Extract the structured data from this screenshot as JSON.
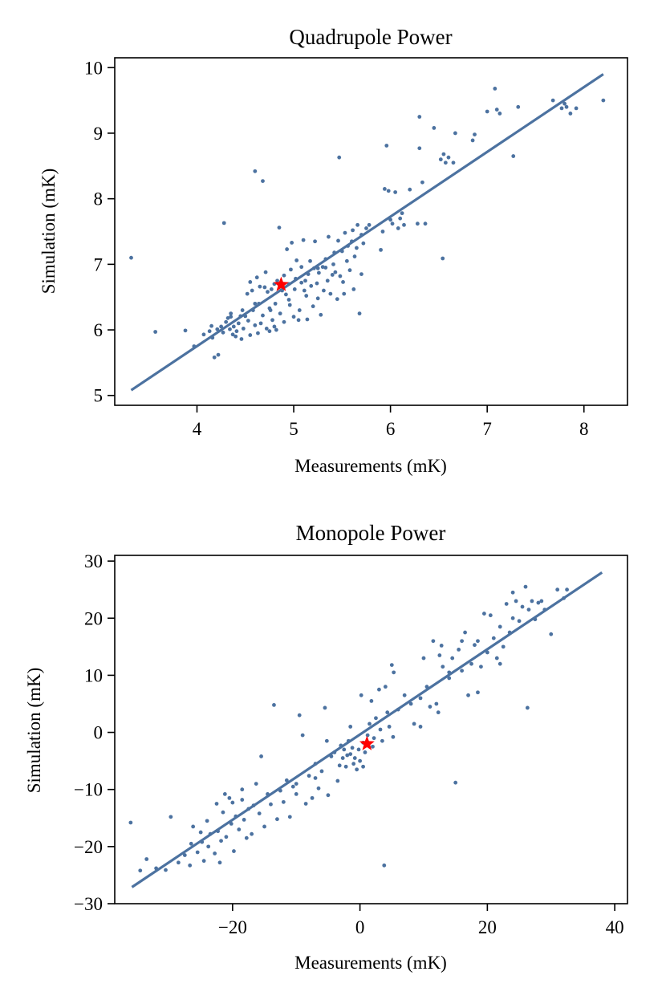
{
  "chart_data": [
    {
      "type": "scatter",
      "title": "Quadrupole Power",
      "xlabel": "Measurements (mK)",
      "ylabel": "Simulation (mK)",
      "xlim": [
        3.15,
        8.45
      ],
      "ylim": [
        4.85,
        10.15
      ],
      "xticks": [
        4,
        5,
        6,
        7,
        8
      ],
      "yticks": [
        5,
        6,
        7,
        8,
        9,
        10
      ],
      "point_color": "#4c72a0",
      "line_color": "#4c72a0",
      "star_color": "#ff0000",
      "fit_line": {
        "x": [
          3.32,
          8.2
        ],
        "y": [
          5.08,
          9.9
        ]
      },
      "highlight": {
        "x": 4.87,
        "y": 6.69
      },
      "points": [
        [
          3.32,
          7.1
        ],
        [
          3.57,
          5.97
        ],
        [
          3.88,
          5.99
        ],
        [
          3.97,
          5.75
        ],
        [
          4.07,
          5.93
        ],
        [
          4.13,
          5.98
        ],
        [
          4.15,
          6.06
        ],
        [
          4.16,
          5.88
        ],
        [
          4.18,
          5.58
        ],
        [
          4.21,
          6.01
        ],
        [
          4.22,
          5.62
        ],
        [
          4.25,
          6.05
        ],
        [
          4.27,
          5.96
        ],
        [
          4.28,
          7.63
        ],
        [
          4.3,
          6.12
        ],
        [
          4.32,
          6.18
        ],
        [
          4.34,
          6.01
        ],
        [
          4.35,
          6.25
        ],
        [
          4.37,
          5.93
        ],
        [
          4.38,
          6.05
        ],
        [
          4.4,
          5.9
        ],
        [
          4.41,
          5.98
        ],
        [
          4.43,
          6.1
        ],
        [
          4.45,
          6.21
        ],
        [
          4.46,
          5.86
        ],
        [
          4.47,
          6.3
        ],
        [
          4.48,
          6.02
        ],
        [
          4.5,
          6.21
        ],
        [
          4.52,
          6.55
        ],
        [
          4.53,
          6.14
        ],
        [
          4.55,
          6.73
        ],
        [
          4.55,
          5.92
        ],
        [
          4.57,
          6.6
        ],
        [
          4.58,
          6.3
        ],
        [
          4.6,
          8.42
        ],
        [
          4.6,
          6.07
        ],
        [
          4.62,
          6.8
        ],
        [
          4.63,
          5.95
        ],
        [
          4.64,
          6.4
        ],
        [
          4.65,
          6.66
        ],
        [
          4.66,
          6.1
        ],
        [
          4.68,
          8.27
        ],
        [
          4.68,
          6.22
        ],
        [
          4.7,
          6.65
        ],
        [
          4.71,
          6.88
        ],
        [
          4.72,
          6.02
        ],
        [
          4.73,
          6.58
        ],
        [
          4.75,
          5.98
        ],
        [
          4.76,
          6.3
        ],
        [
          4.77,
          6.62
        ],
        [
          4.78,
          6.15
        ],
        [
          4.8,
          6.7
        ],
        [
          4.8,
          6.05
        ],
        [
          4.81,
          6.4
        ],
        [
          4.82,
          6.0
        ],
        [
          4.83,
          6.75
        ],
        [
          4.85,
          7.56
        ],
        [
          4.86,
          6.25
        ],
        [
          4.88,
          6.6
        ],
        [
          4.9,
          6.83
        ],
        [
          4.9,
          6.12
        ],
        [
          4.92,
          6.54
        ],
        [
          4.93,
          7.23
        ],
        [
          4.95,
          6.7
        ],
        [
          4.96,
          6.38
        ],
        [
          4.97,
          6.92
        ],
        [
          4.98,
          7.33
        ],
        [
          5.0,
          6.2
        ],
        [
          5.01,
          6.62
        ],
        [
          5.02,
          6.78
        ],
        [
          5.03,
          7.06
        ],
        [
          5.05,
          6.15
        ],
        [
          5.06,
          6.3
        ],
        [
          5.08,
          6.72
        ],
        [
          5.08,
          6.96
        ],
        [
          5.1,
          7.37
        ],
        [
          5.11,
          6.6
        ],
        [
          5.13,
          6.52
        ],
        [
          5.14,
          6.16
        ],
        [
          5.15,
          6.85
        ],
        [
          5.17,
          7.05
        ],
        [
          5.18,
          6.67
        ],
        [
          5.2,
          6.36
        ],
        [
          5.21,
          6.94
        ],
        [
          5.22,
          7.35
        ],
        [
          5.24,
          6.71
        ],
        [
          5.25,
          6.48
        ],
        [
          5.26,
          6.87
        ],
        [
          5.28,
          6.23
        ],
        [
          5.3,
          6.96
        ],
        [
          5.31,
          6.6
        ],
        [
          5.33,
          7.08
        ],
        [
          5.35,
          6.75
        ],
        [
          5.36,
          7.42
        ],
        [
          5.38,
          6.55
        ],
        [
          5.4,
          6.84
        ],
        [
          5.41,
          7.0
        ],
        [
          5.43,
          6.88
        ],
        [
          5.45,
          6.47
        ],
        [
          5.46,
          7.36
        ],
        [
          5.47,
          8.63
        ],
        [
          5.48,
          6.82
        ],
        [
          5.5,
          7.2
        ],
        [
          5.51,
          6.73
        ],
        [
          5.53,
          7.48
        ],
        [
          5.55,
          7.05
        ],
        [
          5.56,
          7.28
        ],
        [
          5.58,
          6.91
        ],
        [
          5.6,
          7.35
        ],
        [
          5.61,
          7.52
        ],
        [
          5.63,
          7.12
        ],
        [
          5.65,
          7.25
        ],
        [
          5.66,
          7.6
        ],
        [
          5.68,
          6.25
        ],
        [
          5.7,
          7.45
        ],
        [
          5.72,
          7.32
        ],
        [
          5.75,
          7.55
        ],
        [
          5.78,
          7.6
        ],
        [
          5.9,
          7.22
        ],
        [
          5.92,
          7.5
        ],
        [
          5.94,
          8.15
        ],
        [
          5.96,
          8.81
        ],
        [
          5.98,
          8.12
        ],
        [
          6.0,
          7.68
        ],
        [
          6.02,
          7.62
        ],
        [
          6.05,
          8.1
        ],
        [
          6.08,
          7.55
        ],
        [
          6.1,
          7.7
        ],
        [
          6.12,
          7.78
        ],
        [
          6.14,
          7.6
        ],
        [
          6.2,
          8.14
        ],
        [
          6.28,
          7.62
        ],
        [
          6.3,
          8.77
        ],
        [
          6.3,
          9.25
        ],
        [
          6.33,
          8.25
        ],
        [
          6.36,
          7.62
        ],
        [
          6.45,
          9.08
        ],
        [
          6.52,
          8.6
        ],
        [
          6.54,
          7.09
        ],
        [
          6.55,
          8.68
        ],
        [
          6.57,
          8.55
        ],
        [
          6.6,
          8.63
        ],
        [
          6.65,
          8.55
        ],
        [
          6.67,
          9.0
        ],
        [
          6.85,
          8.89
        ],
        [
          6.87,
          8.98
        ],
        [
          7.0,
          9.33
        ],
        [
          7.08,
          9.68
        ],
        [
          7.1,
          9.36
        ],
        [
          7.13,
          9.3
        ],
        [
          7.27,
          8.65
        ],
        [
          7.32,
          9.4
        ],
        [
          7.68,
          9.5
        ],
        [
          7.77,
          9.38
        ],
        [
          7.8,
          9.45
        ],
        [
          7.82,
          9.4
        ],
        [
          7.86,
          9.3
        ],
        [
          7.92,
          9.38
        ],
        [
          8.2,
          9.5
        ],
        [
          5.42,
          7.18
        ],
        [
          5.52,
          6.55
        ],
        [
          5.7,
          6.85
        ],
        [
          4.35,
          6.2
        ],
        [
          4.95,
          6.46
        ],
        [
          5.25,
          6.94
        ],
        [
          4.6,
          6.4
        ],
        [
          5.12,
          6.75
        ],
        [
          5.62,
          6.62
        ],
        [
          4.75,
          6.33
        ],
        [
          5.33,
          6.95
        ]
      ]
    },
    {
      "type": "scatter",
      "title": "Monopole Power",
      "xlabel": "Measurements (mK)",
      "ylabel": "Simulation (mK)",
      "xlim": [
        -38.5,
        42
      ],
      "ylim": [
        -30,
        31
      ],
      "xticks": [
        -20,
        0,
        20,
        40
      ],
      "yticks": [
        -30,
        -20,
        -10,
        0,
        10,
        20,
        30
      ],
      "point_color": "#4c72a0",
      "line_color": "#4c72a0",
      "star_color": "#ff0000",
      "fit_line": {
        "x": [
          -35.8,
          38
        ],
        "y": [
          -27.1,
          28.0
        ]
      },
      "highlight": {
        "x": 1.1,
        "y": -2.0
      },
      "points": [
        [
          -36.0,
          -15.8
        ],
        [
          -34.5,
          -24.2
        ],
        [
          -33.5,
          -22.2
        ],
        [
          -32.0,
          -23.8
        ],
        [
          -30.5,
          -24.1
        ],
        [
          -29.7,
          -14.8
        ],
        [
          -28.5,
          -22.8
        ],
        [
          -27.5,
          -21.5
        ],
        [
          -26.7,
          -23.3
        ],
        [
          -26.5,
          -19.5
        ],
        [
          -26.2,
          -16.5
        ],
        [
          -25.5,
          -21.0
        ],
        [
          -24.8,
          -19.2
        ],
        [
          -24.5,
          -22.5
        ],
        [
          -24.0,
          -15.5
        ],
        [
          -23.8,
          -20.0
        ],
        [
          -23.5,
          -17.8
        ],
        [
          -22.8,
          -21.2
        ],
        [
          -22.5,
          -12.5
        ],
        [
          -22.3,
          -17.3
        ],
        [
          -22.0,
          -22.8
        ],
        [
          -21.8,
          -19.0
        ],
        [
          -21.5,
          -14.0
        ],
        [
          -21.2,
          -10.8
        ],
        [
          -21.0,
          -18.3
        ],
        [
          -20.5,
          -11.5
        ],
        [
          -20.2,
          -16.0
        ],
        [
          -20.0,
          -12.3
        ],
        [
          -19.8,
          -20.8
        ],
        [
          -19.5,
          -14.7
        ],
        [
          -19.0,
          -17.0
        ],
        [
          -18.5,
          -11.8
        ],
        [
          -18.2,
          -15.3
        ],
        [
          -17.8,
          -18.5
        ],
        [
          -17.5,
          -13.4
        ],
        [
          -17.0,
          -17.8
        ],
        [
          -16.7,
          -12.8
        ],
        [
          -16.3,
          -9.0
        ],
        [
          -15.8,
          -14.2
        ],
        [
          -15.0,
          -16.5
        ],
        [
          -14.5,
          -10.8
        ],
        [
          -14.0,
          -12.6
        ],
        [
          -13.5,
          4.8
        ],
        [
          -13.0,
          -15.2
        ],
        [
          -12.5,
          -10.2
        ],
        [
          -12.0,
          -12.2
        ],
        [
          -11.5,
          -8.4
        ],
        [
          -11.0,
          -14.8
        ],
        [
          -10.5,
          -9.5
        ],
        [
          -10.0,
          -10.8
        ],
        [
          -9.5,
          3.0
        ],
        [
          -9.0,
          -0.5
        ],
        [
          -8.5,
          -12.5
        ],
        [
          -8.0,
          -7.6
        ],
        [
          -7.5,
          -11.5
        ],
        [
          -7.0,
          -5.5
        ],
        [
          -6.5,
          -9.8
        ],
        [
          -6.0,
          -6.8
        ],
        [
          -5.5,
          4.3
        ],
        [
          -5.2,
          -1.5
        ],
        [
          -5.0,
          -11.0
        ],
        [
          -4.5,
          -4.2
        ],
        [
          -4.0,
          -3.5
        ],
        [
          -3.5,
          -8.5
        ],
        [
          -3.2,
          -5.8
        ],
        [
          -3.0,
          -2.3
        ],
        [
          -2.7,
          -4.5
        ],
        [
          -2.5,
          -3.0
        ],
        [
          -2.2,
          -6.0
        ],
        [
          -2.0,
          -4.0
        ],
        [
          -1.8,
          -1.5
        ],
        [
          -1.5,
          -3.8
        ],
        [
          -1.2,
          -2.7
        ],
        [
          -1.0,
          -5.5
        ],
        [
          -0.8,
          -4.5
        ],
        [
          -0.5,
          -6.5
        ],
        [
          -0.2,
          -3.0
        ],
        [
          0.0,
          -5.0
        ],
        [
          0.2,
          6.5
        ],
        [
          0.5,
          -1.8
        ],
        [
          0.8,
          -3.5
        ],
        [
          1.2,
          -0.5
        ],
        [
          1.5,
          1.5
        ],
        [
          1.8,
          5.5
        ],
        [
          2.2,
          -1.0
        ],
        [
          2.5,
          2.5
        ],
        [
          3.0,
          7.5
        ],
        [
          3.2,
          0.5
        ],
        [
          3.5,
          -1.5
        ],
        [
          3.8,
          -23.3
        ],
        [
          4.0,
          8.0
        ],
        [
          4.3,
          3.5
        ],
        [
          4.6,
          1.0
        ],
        [
          5.0,
          11.8
        ],
        [
          5.3,
          10.5
        ],
        [
          6.0,
          4.0
        ],
        [
          7.0,
          6.5
        ],
        [
          8.5,
          1.5
        ],
        [
          9.5,
          6.0
        ],
        [
          10.0,
          13.0
        ],
        [
          10.5,
          8.0
        ],
        [
          11.0,
          4.5
        ],
        [
          11.5,
          16.0
        ],
        [
          12.0,
          5.0
        ],
        [
          12.3,
          3.5
        ],
        [
          12.8,
          15.2
        ],
        [
          13.0,
          11.5
        ],
        [
          14.0,
          9.5
        ],
        [
          14.5,
          13.0
        ],
        [
          15.0,
          -8.8
        ],
        [
          15.5,
          14.5
        ],
        [
          16.0,
          10.8
        ],
        [
          16.5,
          17.5
        ],
        [
          17.0,
          6.5
        ],
        [
          17.5,
          12.0
        ],
        [
          18.0,
          15.3
        ],
        [
          18.5,
          7.0
        ],
        [
          19.0,
          11.5
        ],
        [
          19.5,
          20.8
        ],
        [
          20.0,
          14.0
        ],
        [
          20.5,
          20.5
        ],
        [
          21.0,
          16.5
        ],
        [
          21.5,
          13.0
        ],
        [
          22.0,
          18.5
        ],
        [
          22.5,
          15.0
        ],
        [
          23.0,
          22.5
        ],
        [
          23.5,
          17.5
        ],
        [
          24.0,
          20.0
        ],
        [
          24.5,
          23.0
        ],
        [
          25.0,
          19.5
        ],
        [
          25.5,
          22.0
        ],
        [
          26.0,
          25.5
        ],
        [
          26.3,
          4.3
        ],
        [
          26.5,
          21.5
        ],
        [
          27.0,
          23.0
        ],
        [
          27.5,
          19.8
        ],
        [
          28.0,
          22.7
        ],
        [
          28.5,
          23.0
        ],
        [
          29.0,
          21.5
        ],
        [
          30.0,
          17.2
        ],
        [
          31.0,
          25.0
        ],
        [
          32.0,
          23.5
        ],
        [
          32.5,
          25.0
        ],
        [
          -10.0,
          -9.0
        ],
        [
          -15.5,
          -4.2
        ],
        [
          5.2,
          -0.8
        ],
        [
          2.0,
          -2.5
        ],
        [
          8.0,
          5.0
        ],
        [
          14.0,
          10.5
        ],
        [
          18.5,
          16.0
        ],
        [
          22.0,
          12.0
        ],
        [
          -25.0,
          -17.5
        ],
        [
          -18.5,
          -10.0
        ],
        [
          -7.0,
          -8.0
        ],
        [
          9.5,
          1.0
        ],
        [
          12.5,
          13.5
        ],
        [
          -1.5,
          1.0
        ],
        [
          0.5,
          -6.0
        ],
        [
          16.0,
          16.0
        ],
        [
          24.0,
          24.5
        ]
      ]
    }
  ]
}
